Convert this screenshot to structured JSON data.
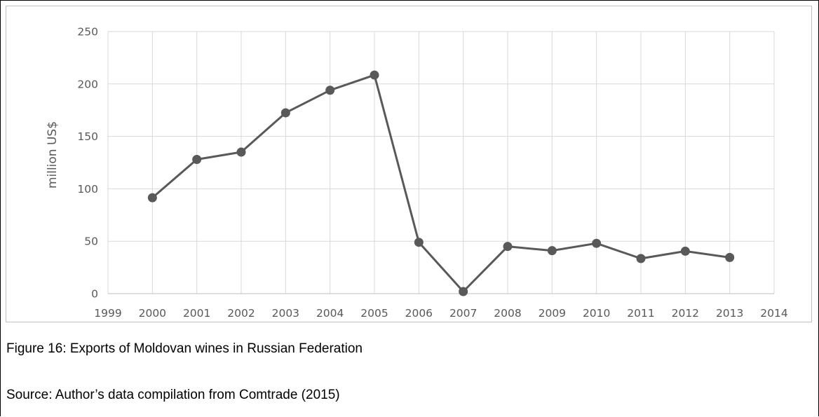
{
  "figure": {
    "caption": "Figure 16: Exports of Moldovan wines in Russian Federation",
    "source": "Source: Author’s data compilation from Comtrade (2015)"
  },
  "chart_data": {
    "type": "line",
    "title": "",
    "xlabel": "",
    "ylabel": "million US$",
    "xlim": [
      1999,
      2014
    ],
    "ylim": [
      0,
      250
    ],
    "x_ticks": [
      1999,
      2000,
      2001,
      2002,
      2003,
      2004,
      2005,
      2006,
      2007,
      2008,
      2009,
      2010,
      2011,
      2012,
      2013,
      2014
    ],
    "y_ticks": [
      0,
      50,
      100,
      150,
      200,
      250
    ],
    "grid": true,
    "legend": "none",
    "series": [
      {
        "color": "#595959",
        "x": [
          2000,
          2001,
          2002,
          2003,
          2004,
          2005,
          2006,
          2007,
          2008,
          2009,
          2010,
          2011,
          2012,
          2013
        ],
        "y": [
          91.5,
          128,
          135,
          172.5,
          194,
          208.5,
          49,
          2,
          45,
          41,
          48,
          33.5,
          40.5,
          34.5
        ]
      }
    ]
  }
}
